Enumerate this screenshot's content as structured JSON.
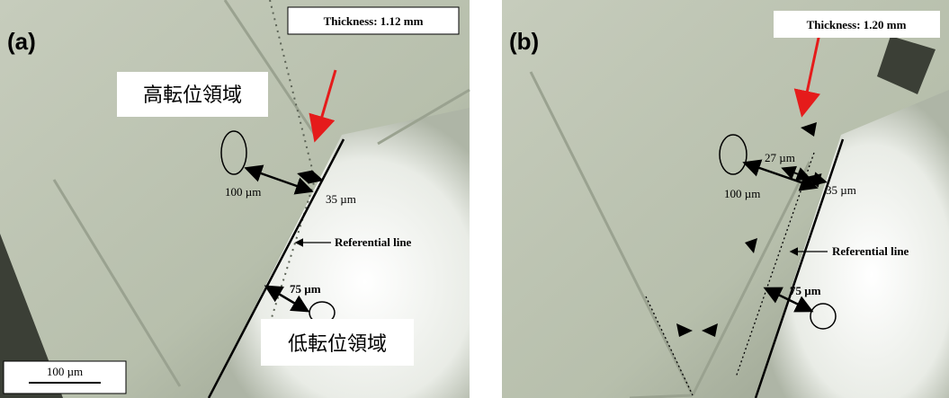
{
  "panels": [
    {
      "label": "(a)",
      "thickness": "Thickness: 1.12 mm",
      "high_region": "高転位領域",
      "low_region": "低転位領域",
      "dist_100": "100 µm",
      "dist_35": "35 µm",
      "ref_line": "Referential line",
      "dist_75": "75 µm",
      "scale_bar": "100 µm"
    },
    {
      "label": "(b)",
      "thickness": "Thickness: 1.20 mm",
      "dist_27": "27 µm",
      "dist_100": "100 µm",
      "dist_35": "35 µm",
      "ref_line": "Referential line",
      "dist_75": "75 µm"
    }
  ]
}
